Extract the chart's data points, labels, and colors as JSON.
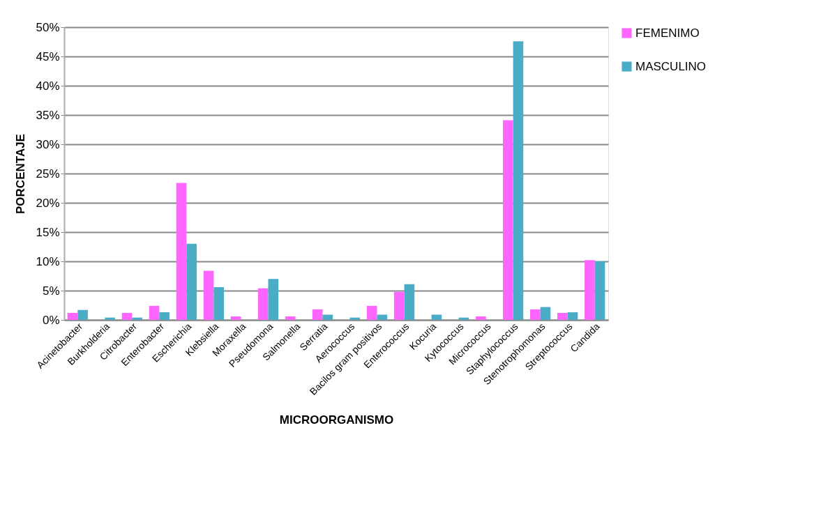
{
  "chart_data": {
    "type": "bar",
    "xlabel": "MICROORGANISMO",
    "ylabel": "PORCENTAJE",
    "categories": [
      "Acinetobacter",
      "Burkholderia",
      "Citrobacter",
      "Enterobacter",
      "Escherichia",
      "Klebsiella",
      "Moraxella",
      "Pseudomona",
      "Salmonella",
      "Serratia",
      "Aerococcus",
      "Bacilos gram positivos",
      "Enterococcus",
      "Kocuria",
      "Kytococcus",
      "Micrococcus",
      "Staphylococcus",
      "Stenotrophomonas",
      "Streptococcus",
      "Candida"
    ],
    "series": [
      {
        "name": "FEMENIMO",
        "color": "#ff66ff",
        "values": [
          1.2,
          null,
          1.2,
          2.4,
          23.4,
          8.4,
          0.6,
          5.4,
          0.6,
          1.8,
          null,
          2.4,
          4.8,
          null,
          null,
          0.6,
          34.1,
          1.8,
          1.2,
          10.2
        ]
      },
      {
        "name": "MASCULINO",
        "color": "#4bacc6",
        "values": [
          1.7,
          0.4,
          0.4,
          1.3,
          13.0,
          5.6,
          null,
          7.0,
          null,
          0.9,
          0.4,
          0.9,
          6.1,
          0.9,
          0.4,
          null,
          47.6,
          2.2,
          1.3,
          10.0
        ]
      }
    ],
    "ylim": [
      0,
      50
    ],
    "yticks": [
      {
        "value": 0,
        "label": "0%"
      },
      {
        "value": 5,
        "label": "5%"
      },
      {
        "value": 10,
        "label": "10%"
      },
      {
        "value": 15,
        "label": "15%"
      },
      {
        "value": 20,
        "label": "20%"
      },
      {
        "value": 25,
        "label": "25%"
      },
      {
        "value": 30,
        "label": "30%"
      },
      {
        "value": 35,
        "label": "35%"
      },
      {
        "value": 40,
        "label": "40%"
      },
      {
        "value": 45,
        "label": "45%"
      },
      {
        "value": 50,
        "label": "50%"
      }
    ],
    "grid": "y",
    "legend": "right"
  }
}
